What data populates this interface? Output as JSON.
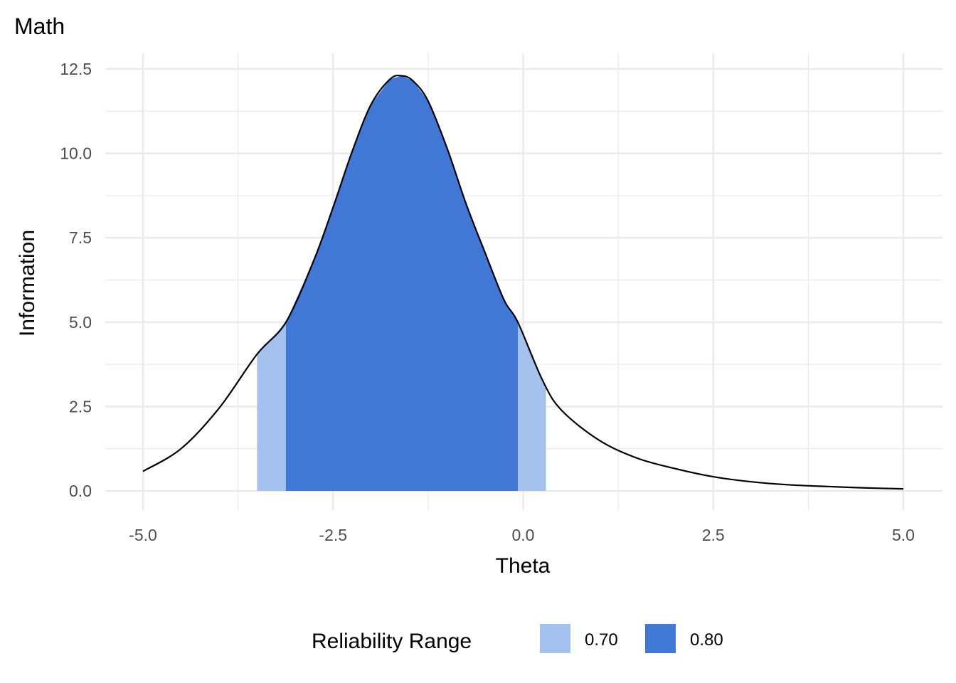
{
  "chart_data": {
    "type": "area",
    "title": "Math",
    "xlabel": "Theta",
    "ylabel": "Information",
    "xlim": [
      -5.0,
      5.0
    ],
    "ylim": [
      0,
      12.5
    ],
    "x_ticks": [
      "-5.0",
      "-2.5",
      "0.0",
      "2.5",
      "5.0"
    ],
    "y_ticks": [
      "0.0",
      "2.5",
      "5.0",
      "7.5",
      "10.0",
      "12.5"
    ],
    "grid": true,
    "legend_position": "bottom",
    "legend": {
      "title": "Reliability Range",
      "entries": [
        {
          "label": "0.70",
          "color": "#a5c1ee"
        },
        {
          "label": "0.80",
          "color": "#4178d6"
        }
      ]
    },
    "curve": {
      "color": "#000000",
      "x": [
        -5.0,
        -4.5,
        -4.0,
        -3.5,
        -3.12,
        -2.75,
        -2.5,
        -2.25,
        -2.0,
        -1.75,
        -1.6,
        -1.45,
        -1.25,
        -1.0,
        -0.75,
        -0.5,
        -0.25,
        -0.07,
        0.25,
        0.5,
        1.0,
        1.5,
        2.0,
        2.5,
        3.0,
        3.5,
        4.0,
        4.5,
        5.0
      ],
      "y": [
        0.58,
        1.25,
        2.45,
        4.05,
        5.0,
        6.85,
        8.4,
        10.05,
        11.45,
        12.2,
        12.3,
        12.15,
        11.55,
        10.15,
        8.5,
        7.05,
        5.65,
        5.0,
        3.3,
        2.4,
        1.5,
        0.97,
        0.66,
        0.42,
        0.27,
        0.18,
        0.13,
        0.09,
        0.06
      ]
    },
    "shaded_regions": [
      {
        "label": "0.70",
        "x_range": [
          -3.5,
          0.3
        ],
        "color": "#a5c1ee"
      },
      {
        "label": "0.80",
        "x_range": [
          -3.12,
          -0.07
        ],
        "color": "#4178d6"
      }
    ]
  }
}
